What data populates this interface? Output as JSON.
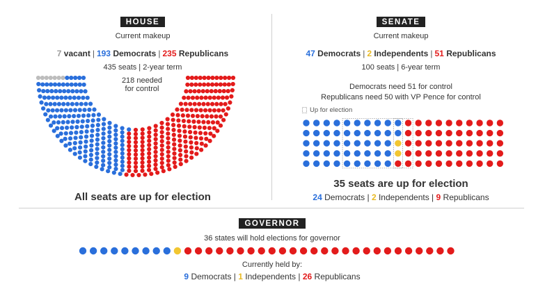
{
  "house": {
    "tag": "HOUSE",
    "subtitle": "Current makeup",
    "vacant_count": "7",
    "vacant_label": "vacant",
    "dem_count": "193",
    "dem_label": "Democrats",
    "rep_count": "235",
    "rep_label": "Republicans",
    "seats_info": "435 seats | 2-year term",
    "needed_line1": "218 needed",
    "needed_line2": "for control",
    "footer": "All seats are up for election",
    "seats": {
      "vacant": 7,
      "democrats": 193,
      "republicans": 235
    }
  },
  "senate": {
    "tag": "SENATE",
    "subtitle": "Current makeup",
    "dem_count": "47",
    "dem_label": "Democrats",
    "ind_count": "2",
    "ind_label": "Independents",
    "rep_count": "51",
    "rep_label": "Republicans",
    "seats_info": "100 seats | 6-year term",
    "control_line1": "Democrats need 51 for control",
    "control_line2": "Republicans need 50 with VP Pence for control",
    "legend_up": "Up for election",
    "footer": "35 seats are up for election",
    "up_dem_count": "24",
    "up_dem_label": "Democrats",
    "up_ind_count": "2",
    "up_ind_label": "Independents",
    "up_rep_count": "9",
    "up_rep_label": "Republicans",
    "seats": {
      "democrats": 47,
      "independents": 2,
      "republicans": 51
    }
  },
  "governor": {
    "tag": "GOVERNOR",
    "subtitle": "36 states will hold elections for governor",
    "held_label": "Currently held by:",
    "dem_count": "9",
    "dem_label": "Democrats",
    "ind_count": "1",
    "ind_label": "Independents",
    "rep_count": "26",
    "rep_label": "Republicans",
    "seats": {
      "democrats": 9,
      "independents": 1,
      "republicans": 26
    }
  },
  "colors": {
    "democrat": "#2a6fdb",
    "republican": "#e31b1b",
    "independent": "#f2c631",
    "vacant": "#bdbdbd"
  }
}
